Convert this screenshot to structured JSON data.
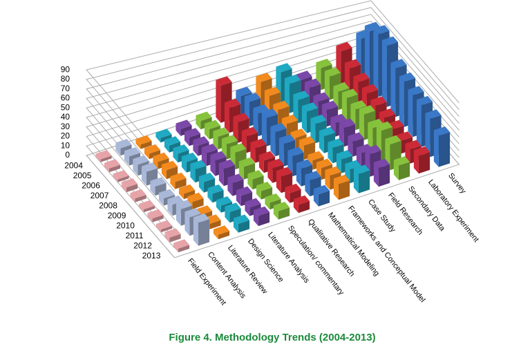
{
  "chart_data": {
    "type": "bar3d",
    "caption": "Figure 4. Methodology Trends (2004-2013)",
    "years": [
      "2004",
      "2005",
      "2006",
      "2007",
      "2008",
      "2009",
      "2010",
      "2011",
      "2012",
      "2013"
    ],
    "zlim": [
      0,
      90
    ],
    "zticks": [
      0,
      10,
      20,
      30,
      40,
      50,
      60,
      70,
      80,
      90
    ],
    "grid": true,
    "series": [
      {
        "name": "Field Experiment",
        "color": "#e6a3a8",
        "values": [
          3,
          4,
          3,
          5,
          4,
          3,
          4,
          3,
          5,
          4
        ]
      },
      {
        "name": "Content Analysis",
        "color": "#a9b8d8",
        "values": [
          8,
          10,
          12,
          15,
          10,
          8,
          12,
          18,
          20,
          25
        ]
      },
      {
        "name": "Literature Review",
        "color": "#f28a1e",
        "values": [
          5,
          6,
          8,
          10,
          8,
          6,
          8,
          5,
          6,
          5
        ]
      },
      {
        "name": "Design Science",
        "color": "#1fa9c2",
        "values": [
          5,
          8,
          10,
          12,
          15,
          12,
          10,
          8,
          12,
          10
        ]
      },
      {
        "name": "Literature Analysis",
        "color": "#7b47a8",
        "values": [
          8,
          10,
          12,
          15,
          18,
          20,
          15,
          12,
          10,
          12
        ]
      },
      {
        "name": "Speculation/ commentary",
        "color": "#86c23c",
        "values": [
          10,
          12,
          15,
          18,
          20,
          15,
          12,
          10,
          8,
          10
        ]
      },
      {
        "name": "Qualitative Research",
        "color": "#cc2a36",
        "values": [
          45,
          30,
          25,
          20,
          18,
          15,
          18,
          20,
          12,
          10
        ]
      },
      {
        "name": "Mathematical Modeling",
        "color": "#3a78c8",
        "values": [
          25,
          30,
          28,
          35,
          30,
          28,
          25,
          22,
          20,
          15
        ]
      },
      {
        "name": "Frameworks and Conceptual Model",
        "color": "#f28a1e",
        "values": [
          35,
          30,
          25,
          20,
          15,
          18,
          12,
          15,
          18,
          20
        ]
      },
      {
        "name": "Case Study",
        "color": "#1fa9c2",
        "values": [
          40,
          38,
          30,
          28,
          25,
          22,
          20,
          18,
          18,
          25
        ]
      },
      {
        "name": "Field Research",
        "color": "#7b47a8",
        "values": [
          22,
          25,
          20,
          22,
          18,
          25,
          20,
          18,
          30,
          25
        ]
      },
      {
        "name": "Secondary Data",
        "color": "#86c23c",
        "values": [
          30,
          32,
          25,
          30,
          28,
          35,
          30,
          40,
          35,
          20
        ]
      },
      {
        "name": "Laboratory Experiment",
        "color": "#cc2a36",
        "values": [
          45,
          35,
          30,
          28,
          25,
          22,
          20,
          18,
          20,
          25
        ]
      },
      {
        "name": "Survey",
        "color": "#3a78c8",
        "values": [
          55,
          80,
          90,
          88,
          70,
          65,
          60,
          60,
          55,
          45
        ]
      }
    ]
  }
}
